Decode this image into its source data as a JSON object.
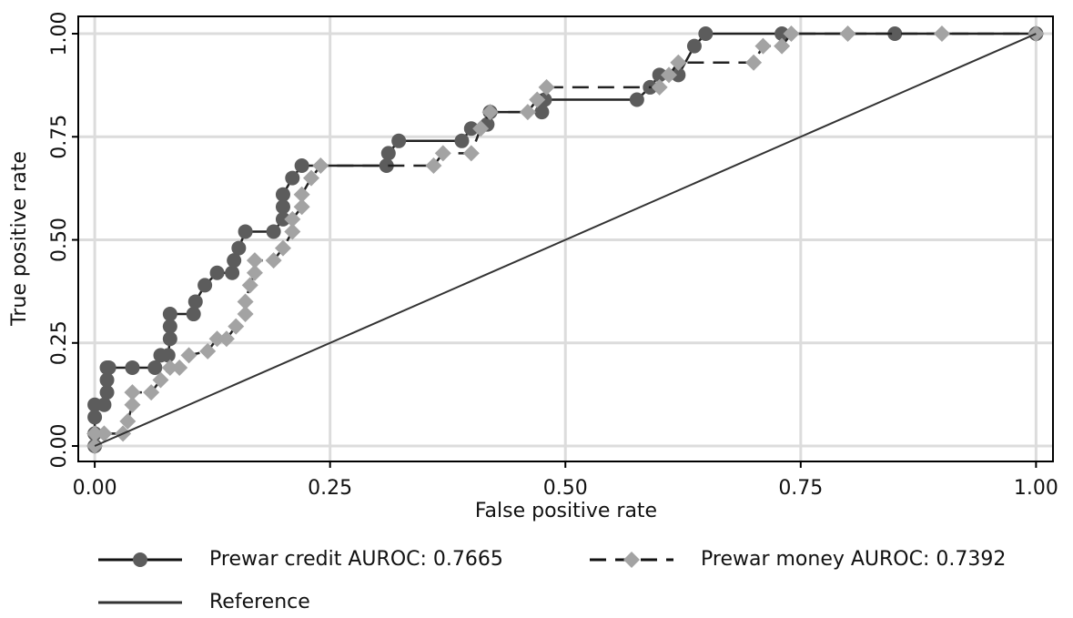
{
  "chart_data": {
    "type": "line",
    "x_label": "False positive rate",
    "y_label": "True positive rate",
    "xlim": [
      -0.0175,
      1.018
    ],
    "ylim": [
      -0.0375,
      1.042
    ],
    "xticks": [
      {
        "value": 0,
        "label": "0.00"
      },
      {
        "value": 0.25,
        "label": "0.25"
      },
      {
        "value": 0.5,
        "label": "0.50"
      },
      {
        "value": 0.75,
        "label": "0.75"
      },
      {
        "value": 1,
        "label": "1.00"
      }
    ],
    "yticks": [
      {
        "value": 0,
        "label": "0.00"
      },
      {
        "value": 0.25,
        "label": "0.25"
      },
      {
        "value": 0.5,
        "label": "0.50"
      },
      {
        "value": 0.75,
        "label": "0.75"
      },
      {
        "value": 1,
        "label": "1.00"
      }
    ],
    "grid": true,
    "series": [
      {
        "name": "Prewar credit AUROC: 0.7665",
        "color": "#5c5c5c",
        "marker": "circle",
        "dash": "solid",
        "x": [
          0,
          0,
          0,
          0,
          0.01,
          0.013,
          0.013,
          0.013,
          0.015,
          0.04,
          0.064,
          0.07,
          0.078,
          0.08,
          0.08,
          0.08,
          0.105,
          0.107,
          0.117,
          0.13,
          0.146,
          0.148,
          0.153,
          0.16,
          0.19,
          0.2,
          0.2,
          0.2,
          0.21,
          0.22,
          0.31,
          0.312,
          0.323,
          0.39,
          0.4,
          0.417,
          0.42,
          0.475,
          0.478,
          0.576,
          0.59,
          0.6,
          0.62,
          0.637,
          0.649,
          0.73,
          0.85,
          1
        ],
        "y": [
          0,
          0.03,
          0.07,
          0.1,
          0.1,
          0.13,
          0.16,
          0.19,
          0.19,
          0.19,
          0.19,
          0.22,
          0.22,
          0.26,
          0.29,
          0.32,
          0.32,
          0.35,
          0.39,
          0.42,
          0.42,
          0.45,
          0.48,
          0.52,
          0.52,
          0.55,
          0.58,
          0.61,
          0.65,
          0.68,
          0.68,
          0.71,
          0.74,
          0.74,
          0.77,
          0.78,
          0.81,
          0.81,
          0.84,
          0.84,
          0.87,
          0.9,
          0.9,
          0.97,
          1,
          1,
          1,
          1
        ]
      },
      {
        "name": "Prewar money AUROC: 0.7392",
        "color": "#a3a3a3",
        "marker": "diamond",
        "dash": "dashed",
        "x": [
          0,
          0,
          0.01,
          0.03,
          0.035,
          0.04,
          0.04,
          0.06,
          0.07,
          0.08,
          0.09,
          0.1,
          0.12,
          0.13,
          0.14,
          0.15,
          0.16,
          0.16,
          0.165,
          0.17,
          0.17,
          0.19,
          0.2,
          0.21,
          0.21,
          0.22,
          0.22,
          0.23,
          0.24,
          0.36,
          0.37,
          0.4,
          0.41,
          0.42,
          0.46,
          0.47,
          0.48,
          0.6,
          0.61,
          0.62,
          0.7,
          0.71,
          0.73,
          0.74,
          0.8,
          0.9,
          1
        ],
        "y": [
          0,
          0.03,
          0.03,
          0.03,
          0.06,
          0.1,
          0.13,
          0.13,
          0.16,
          0.19,
          0.19,
          0.22,
          0.23,
          0.26,
          0.26,
          0.29,
          0.32,
          0.35,
          0.39,
          0.42,
          0.45,
          0.45,
          0.48,
          0.52,
          0.55,
          0.58,
          0.61,
          0.65,
          0.68,
          0.68,
          0.71,
          0.71,
          0.77,
          0.81,
          0.81,
          0.84,
          0.87,
          0.87,
          0.9,
          0.93,
          0.93,
          0.97,
          0.97,
          1,
          1,
          1,
          1
        ]
      },
      {
        "name": "Reference",
        "color": "#333333",
        "dash": "solid",
        "x": [
          0,
          1
        ],
        "y": [
          0,
          1
        ]
      }
    ]
  }
}
